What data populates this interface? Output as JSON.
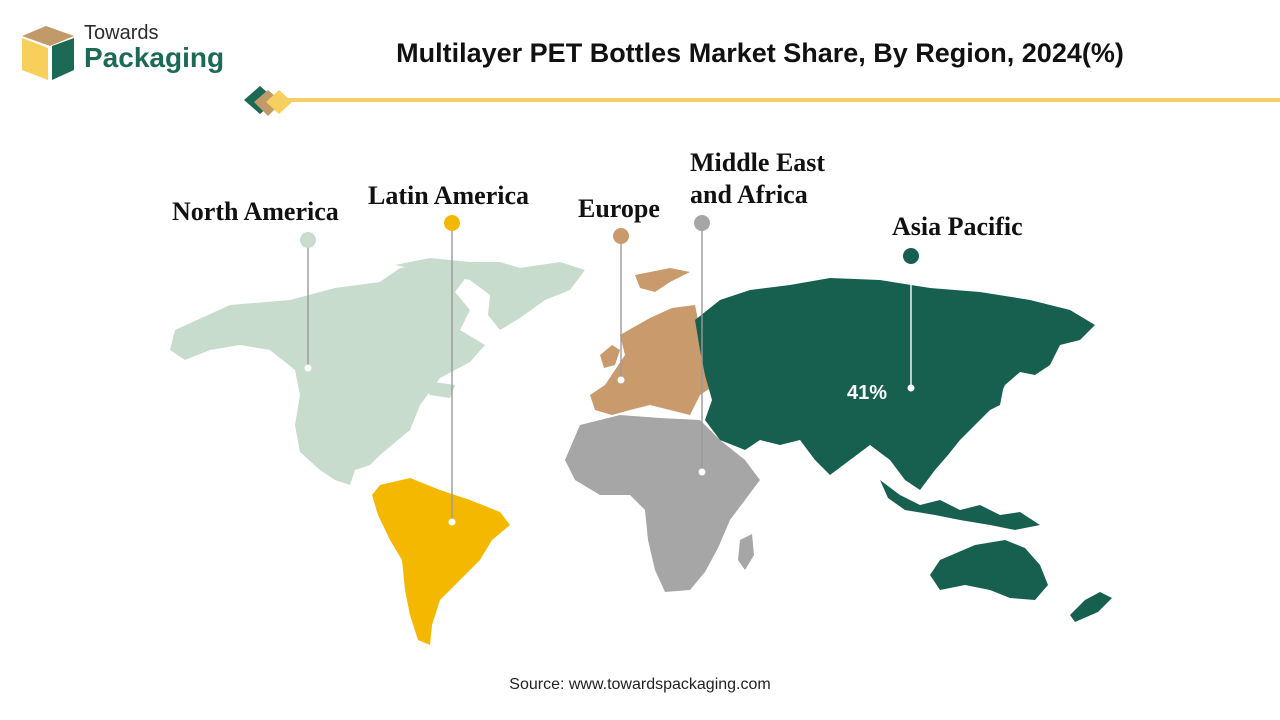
{
  "brand": {
    "line1": "Towards",
    "line2": "Packaging"
  },
  "title": "Multilayer PET Bottles Market Share, By Region, 2024(%)",
  "source": "Source: www.towardspackaging.com",
  "regions": [
    {
      "key": "north_america",
      "label": "North America",
      "value": "",
      "color": "#c7dccc"
    },
    {
      "key": "latin_america",
      "label": "Latin America",
      "value": "",
      "color": "#f5b800"
    },
    {
      "key": "europe",
      "label": "Europe",
      "value": "",
      "color": "#c99a6b"
    },
    {
      "key": "middle_east_africa",
      "label": "Middle East\nand Africa",
      "value": "",
      "color": "#a6a6a6"
    },
    {
      "key": "asia_pacific",
      "label": "Asia Pacific",
      "value": "41%",
      "color": "#17604f"
    }
  ],
  "colors": {
    "accent_rule": "#f4cf66",
    "brand_green": "#1c6a55",
    "brand_tan": "#c29a6a",
    "brand_yellow": "#f7cf5a"
  }
}
